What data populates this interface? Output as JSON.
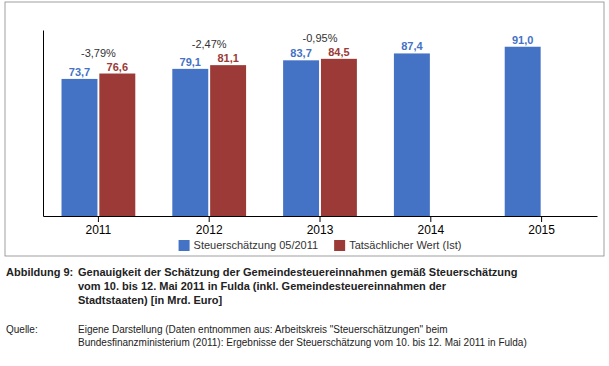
{
  "chart_data": {
    "type": "bar",
    "categories": [
      "2011",
      "2012",
      "2013",
      "2014",
      "2015"
    ],
    "series": [
      {
        "name": "Steuerschätzung 05/2011",
        "color": "#4472C4",
        "values": [
          73.7,
          79.1,
          83.7,
          87.4,
          91.0
        ],
        "value_labels": [
          "73,7",
          "79,1",
          "83,7",
          "87,4",
          "91,0"
        ]
      },
      {
        "name": "Tatsächlicher Wert (Ist)",
        "color": "#9B3A36",
        "values": [
          76.6,
          81.1,
          84.5,
          null,
          null
        ],
        "value_labels": [
          "76,6",
          "81,1",
          "84,5",
          null,
          null
        ]
      }
    ],
    "annotations": [
      {
        "category": "2011",
        "text": "-3,79%"
      },
      {
        "category": "2012",
        "text": "-2,47%"
      },
      {
        "category": "2013",
        "text": "-0,95%"
      }
    ],
    "ylim": [
      0,
      100
    ],
    "data_labels": true,
    "tick_labels": "x",
    "legend": "bottom",
    "caption_label": "Abbildung 9:",
    "caption": "Genauigkeit der Schätzung der Gemeindesteuereinnahmen gemäß Steuerschätzung\nvom 10. bis 12. Mai 2011 in Fulda (inkl. Gemeindesteuereinnahmen der\nStadtstaaten) [in Mrd. Euro]",
    "source_label": "Quelle:",
    "source": "Eigene Darstellung (Daten entnommen aus: Arbeitskreis \"Steuerschätzungen\" beim\nBundesfinanzministerium (2011): Ergebnisse der Steuerschätzung vom 10. bis 12. Mai 2011 in Fulda)"
  }
}
